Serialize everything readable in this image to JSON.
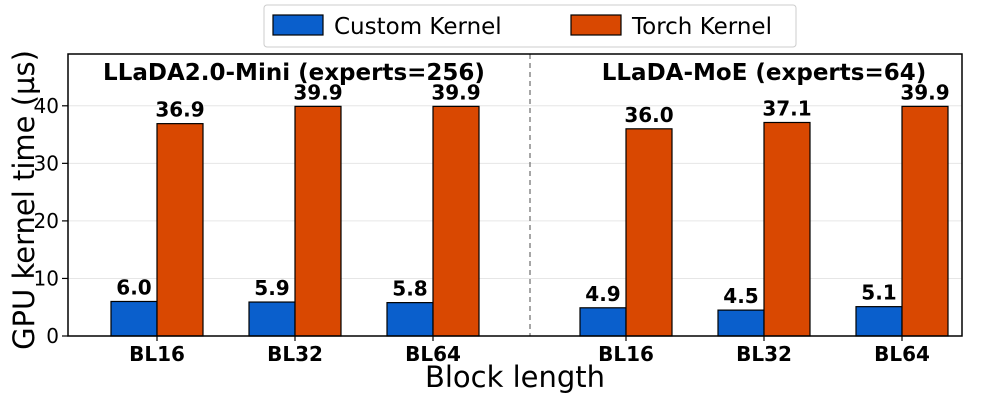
{
  "chart_data": {
    "type": "bar",
    "title": "",
    "xlabel": "Block length",
    "ylabel": "GPU kernel time (µs)",
    "ylim": [
      0,
      49
    ],
    "yticks": [
      0,
      10,
      20,
      30,
      40
    ],
    "grid": true,
    "legend_position": "top-center",
    "groups": [
      {
        "label": "LLaDA2.0-Mini (experts=256)",
        "categories": [
          "BL16",
          "BL32",
          "BL64"
        ]
      },
      {
        "label": "LLaDA-MoE (experts=64)",
        "categories": [
          "BL16",
          "BL32",
          "BL64"
        ]
      }
    ],
    "series": [
      {
        "name": "Custom Kernel",
        "color": "#0a5fcc",
        "values": [
          6.0,
          5.9,
          5.8,
          4.9,
          4.5,
          5.1
        ]
      },
      {
        "name": "Torch Kernel",
        "color": "#d94801",
        "values": [
          36.9,
          39.9,
          39.9,
          36.0,
          37.1,
          39.9
        ]
      }
    ]
  }
}
